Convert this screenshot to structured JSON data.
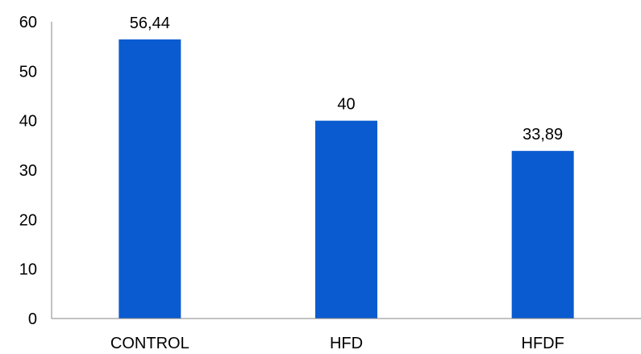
{
  "chart_data": {
    "type": "bar",
    "categories": [
      "CONTROL",
      "HFD",
      "HFDF"
    ],
    "values": [
      56.44,
      40,
      33.89
    ],
    "value_labels": [
      "56,44",
      "40",
      "33,89"
    ],
    "y_ticks": [
      "0",
      "10",
      "20",
      "30",
      "40",
      "50",
      "60"
    ],
    "ylim": [
      0,
      60
    ],
    "grid": false,
    "legend": "none",
    "title": "",
    "xlabel": "",
    "ylabel": "",
    "bar_color": "#0a5bd0"
  }
}
